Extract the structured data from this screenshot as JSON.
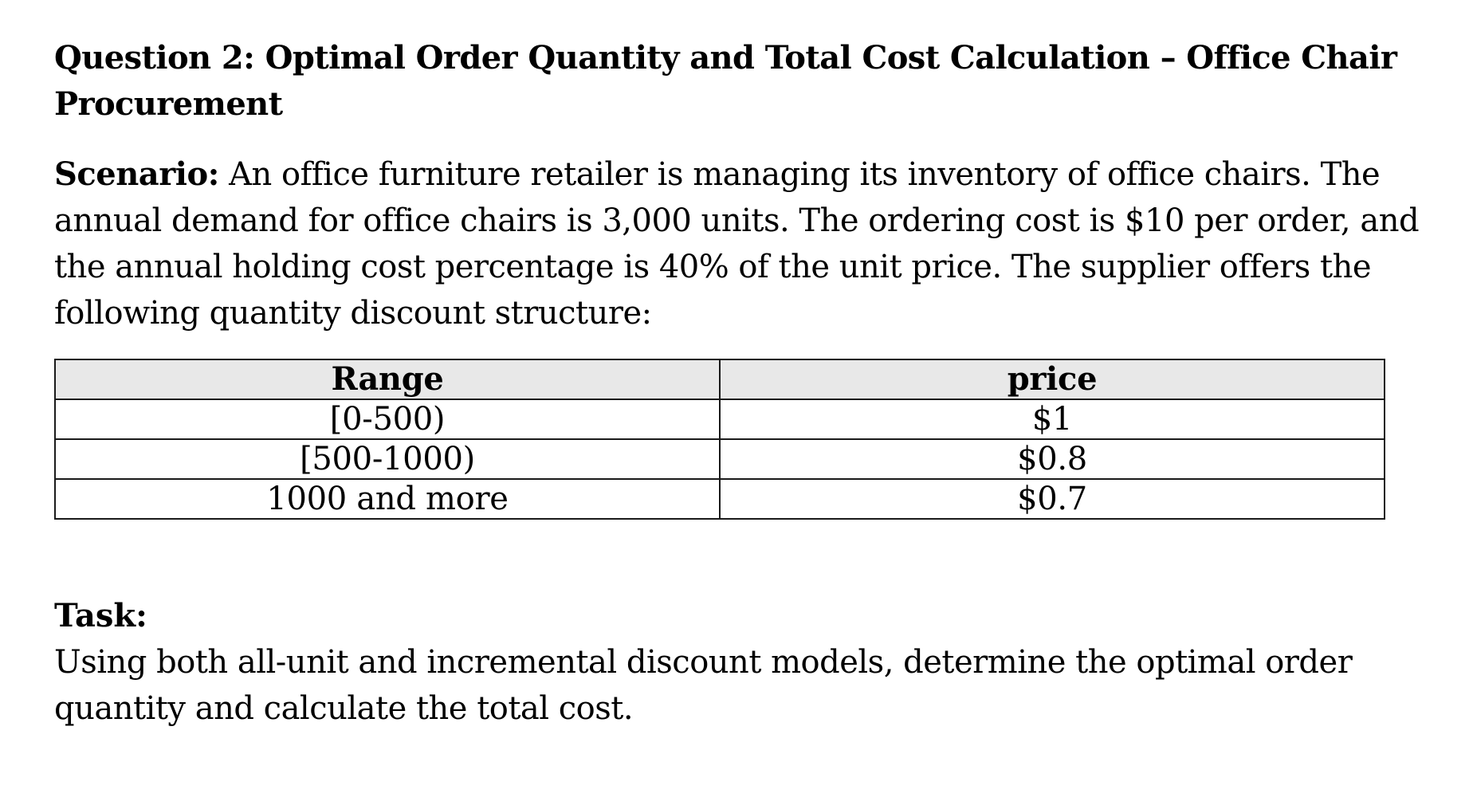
{
  "document": {
    "title": "Question 2: Optimal Order Quantity and Total Cost Calculation – Office Chair Procurement",
    "scenario_label": "Scenario:",
    "scenario_text": " An office furniture retailer is managing its inventory of office chairs. The annual demand for office chairs is 3,000 units. The ordering cost is $10 per order, and the annual holding cost percentage is 40% of the unit price. The supplier offers the following quantity discount structure:",
    "table": {
      "headers": [
        "Range",
        "price"
      ],
      "rows": [
        [
          "[0-500)",
          "$1"
        ],
        [
          "[500-1000)",
          "$0.8"
        ],
        [
          "1000 and more",
          "$0.7"
        ]
      ]
    },
    "task_label": "Task:",
    "task_text": "Using both all-unit and incremental discount models, determine the optimal order quantity and calculate the total cost."
  }
}
